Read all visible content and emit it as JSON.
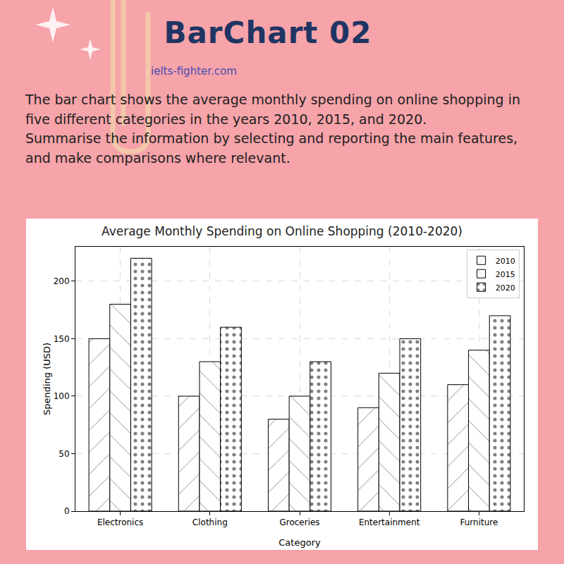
{
  "card": {
    "heading": "BarChart 02",
    "source": "ielts-fighter.com",
    "prompt": [
      "The bar chart shows the average monthly spending on online shopping in five different categories in the years 2010, 2015, and 2020.",
      "Summarise the information by selecting and reporting the main features, and make comparisons where relevant."
    ]
  },
  "chart_data": {
    "type": "bar",
    "title": "Average Monthly Spending on Online Shopping (2010-2020)",
    "xlabel": "Category",
    "ylabel": "Spending (USD)",
    "categories": [
      "Electronics",
      "Clothing",
      "Groceries",
      "Entertainment",
      "Furniture"
    ],
    "series": [
      {
        "name": "2010",
        "color": "#ffffff",
        "marker": "diagonal",
        "values": [
          150,
          100,
          80,
          90,
          110
        ]
      },
      {
        "name": "2015",
        "color": "#ffffff",
        "marker": "backdiagonal",
        "values": [
          180,
          130,
          100,
          120,
          140
        ]
      },
      {
        "name": "2020",
        "color": "#ffffff",
        "marker": "dots",
        "values": [
          220,
          160,
          130,
          150,
          170
        ]
      }
    ],
    "ylim": [
      0,
      230
    ],
    "yticks": [
      0,
      50,
      100,
      150,
      200
    ],
    "grid": true,
    "legend": "upper right"
  }
}
